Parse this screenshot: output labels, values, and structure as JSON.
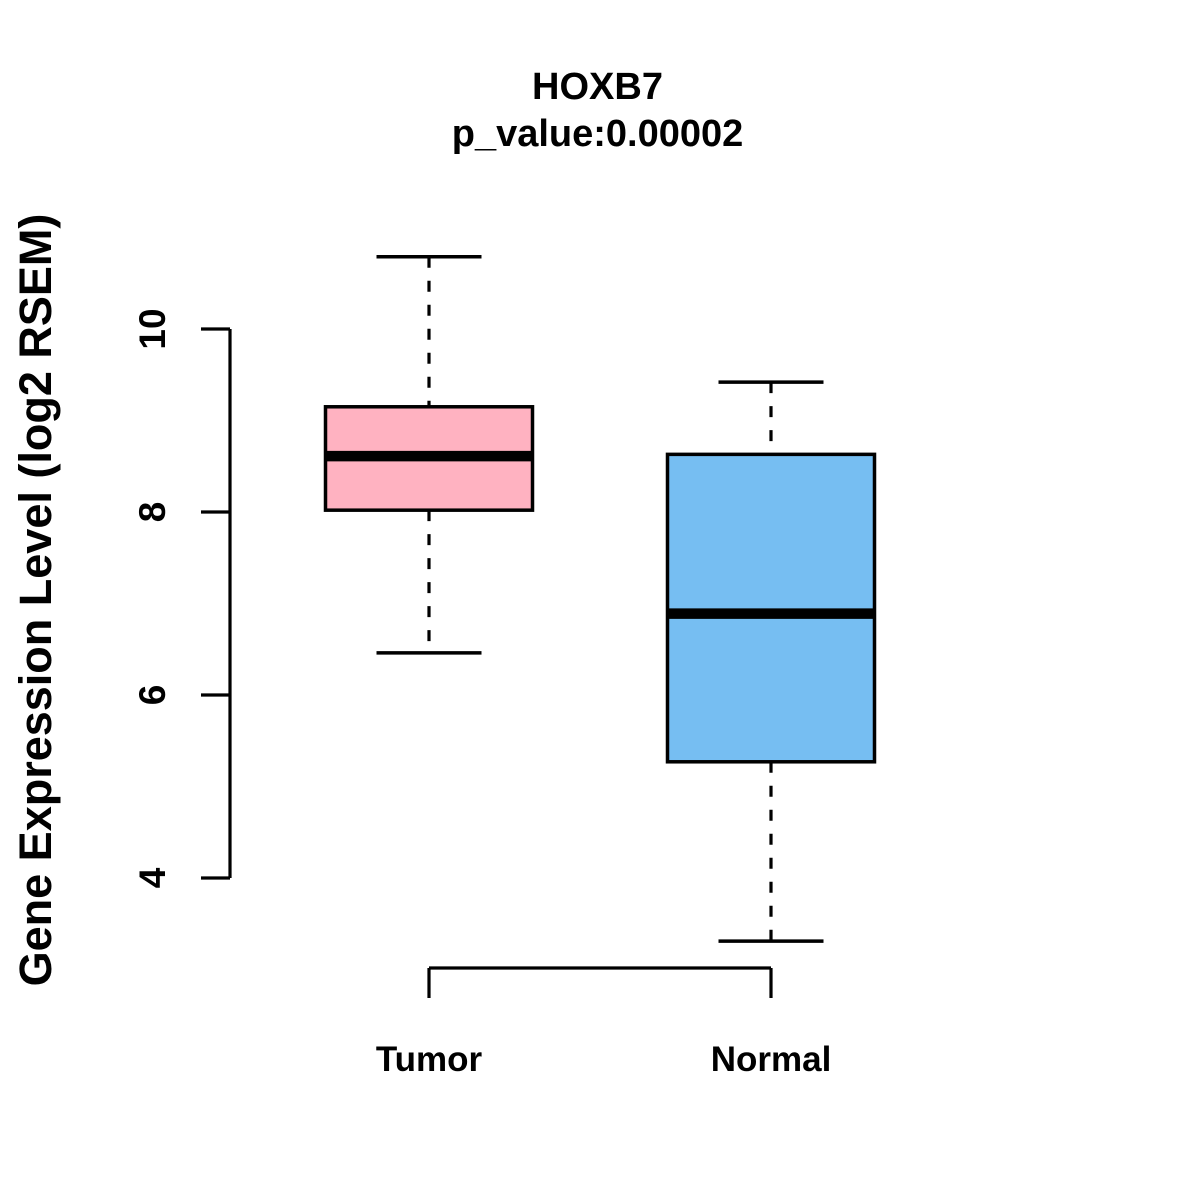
{
  "figure": {
    "background": "#ffffff",
    "title": "HOXB7",
    "subtitle": "p_value:0.00002"
  },
  "colors": {
    "tumor_fill": "#FFB2C1",
    "normal_fill": "#76BEF2",
    "stroke": "#000000"
  },
  "chart_data": {
    "type": "boxplot",
    "title": "HOXB7",
    "subtitle": "p_value:0.00002",
    "xlabel": "",
    "ylabel": "Gene Expression Level (log2 RSEM)",
    "categories": [
      "Tumor",
      "Normal"
    ],
    "yticks": [
      4,
      6,
      8,
      10
    ],
    "ylim": [
      3.0,
      11.0
    ],
    "grid": false,
    "legend_position": "none",
    "series": [
      {
        "name": "Tumor",
        "fill": "#FFB2C1",
        "whisker_low": 6.46,
        "q1": 8.02,
        "median": 8.61,
        "q3": 9.15,
        "whisker_high": 10.79
      },
      {
        "name": "Normal",
        "fill": "#76BEF2",
        "whisker_low": 3.31,
        "q1": 5.27,
        "median": 6.89,
        "q3": 8.63,
        "whisker_high": 9.42
      }
    ]
  }
}
